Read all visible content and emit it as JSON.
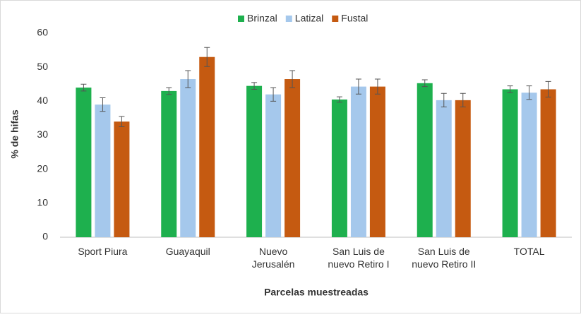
{
  "chart_data": {
    "type": "bar",
    "y_label": "% de hifas",
    "x_label": "Parcelas muestreadas",
    "categories": [
      "Sport Piura",
      "Guayaquil",
      "Nuevo\nJerusalén",
      "San Luis de\nnuevo Retiro I",
      "San Luis de\nnuevo Retiro II",
      "TOTAL"
    ],
    "series": [
      {
        "name": "Brinzal",
        "color": "#1eb04e",
        "values": [
          44,
          43,
          44.5,
          40.5,
          45.3,
          43.5
        ],
        "errors": [
          1,
          1,
          1,
          0.8,
          1,
          1
        ]
      },
      {
        "name": "Latizal",
        "color": "#a5c8ec",
        "values": [
          39,
          46.5,
          42,
          44.3,
          40.3,
          42.5
        ],
        "errors": [
          2,
          2.5,
          2,
          2.2,
          2,
          2
        ]
      },
      {
        "name": "Fustal",
        "color": "#c55a11",
        "values": [
          34,
          53,
          46.5,
          44.3,
          40.3,
          43.5
        ],
        "errors": [
          1.5,
          2.8,
          2.5,
          2.2,
          2,
          2.3
        ]
      }
    ],
    "ylim": [
      0,
      60
    ],
    "yticks": [
      0,
      10,
      20,
      30,
      40,
      50,
      60
    ],
    "legend": "top"
  }
}
